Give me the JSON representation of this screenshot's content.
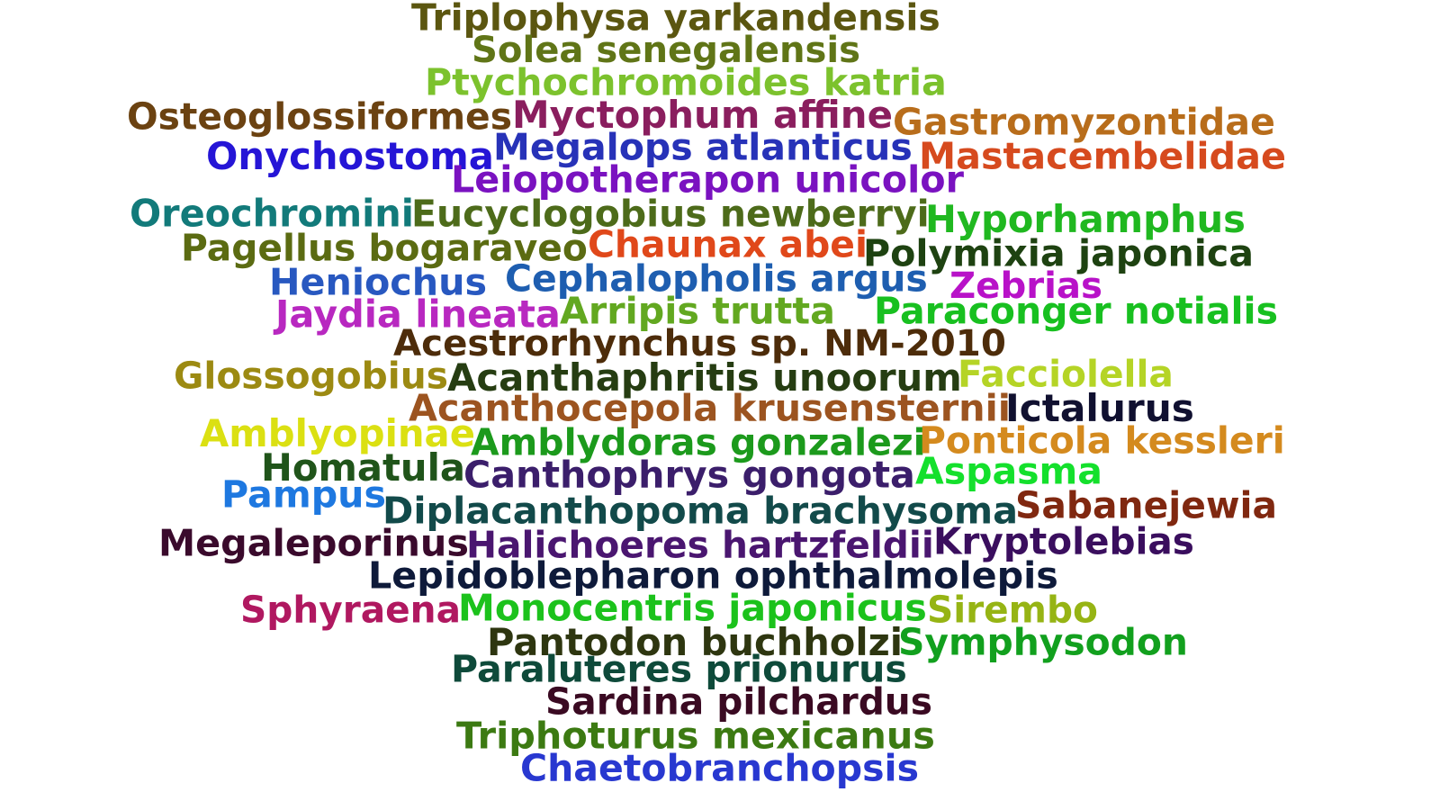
{
  "cloud": {
    "words": [
      {
        "text": "Triplophysa yarkandensis",
        "color": "#5b5610"
      },
      {
        "text": "Solea senegalensis",
        "color": "#607517"
      },
      {
        "text": "Ptychochromoides katria",
        "color": "#7cc22d"
      },
      {
        "text": "Osteoglossiformes",
        "color": "#6b4211"
      },
      {
        "text": "Myctophum affine",
        "color": "#8a1e5e"
      },
      {
        "text": "Gastromyzontidae",
        "color": "#b86d1b"
      },
      {
        "text": "Onychostoma",
        "color": "#2515d6"
      },
      {
        "text": "Megalops atlanticus",
        "color": "#2732b8"
      },
      {
        "text": "Mastacembelidae",
        "color": "#d64a1e"
      },
      {
        "text": "Leiopotherapon unicolor",
        "color": "#7a12c0"
      },
      {
        "text": "Oreochromini",
        "color": "#127a7a"
      },
      {
        "text": "Eucyclogobius newberryi",
        "color": "#4d6b1a"
      },
      {
        "text": "Hyporhamphus",
        "color": "#20b820"
      },
      {
        "text": "Pagellus bogaraveo",
        "color": "#5b6b12"
      },
      {
        "text": "Chaunax abei",
        "color": "#e0481a"
      },
      {
        "text": "Polymixia japonica",
        "color": "#1e4211"
      },
      {
        "text": "Heniochus",
        "color": "#2858c0"
      },
      {
        "text": "Cephalopholis argus",
        "color": "#1e5eb0"
      },
      {
        "text": "Zebrias",
        "color": "#b812c8"
      },
      {
        "text": "Jaydia lineata",
        "color": "#b828c0"
      },
      {
        "text": "Arripis trutta",
        "color": "#62a820"
      },
      {
        "text": "Paraconger notialis",
        "color": "#18c020"
      },
      {
        "text": "Acestrorhynchus sp. NM-2010",
        "color": "#4d2c0a"
      },
      {
        "text": "Glossogobius",
        "color": "#9c8a12"
      },
      {
        "text": "Acanthaphritis unoorum",
        "color": "#263d12"
      },
      {
        "text": "Facciolella",
        "color": "#b5d426"
      },
      {
        "text": "Acanthocepola krusensternii",
        "color": "#9c5420"
      },
      {
        "text": "Ictalurus",
        "color": "#101030"
      },
      {
        "text": "Amblyopinae",
        "color": "#dbe012"
      },
      {
        "text": "Amblydoras gonzalezi",
        "color": "#1c9a1c"
      },
      {
        "text": "Ponticola kessleri",
        "color": "#d48a1e"
      },
      {
        "text": "Homatula",
        "color": "#20541a"
      },
      {
        "text": "Canthophrys gongota",
        "color": "#3b1e6b"
      },
      {
        "text": "Aspasma",
        "color": "#14e02c"
      },
      {
        "text": "Pampus",
        "color": "#1e78e0"
      },
      {
        "text": "Diplacanthopoma brachysoma",
        "color": "#124a4a"
      },
      {
        "text": "Sabanejewia",
        "color": "#802810"
      },
      {
        "text": "Megaleporinus",
        "color": "#3a0a2c"
      },
      {
        "text": "Halichoeres hartzfeldii",
        "color": "#4a1670"
      },
      {
        "text": "Kryptolebias",
        "color": "#3a0e5e"
      },
      {
        "text": "Lepidoblepharon ophthalmolepis",
        "color": "#0e1a3a"
      },
      {
        "text": "Sphyraena",
        "color": "#b01860"
      },
      {
        "text": "Monocentris japonicus",
        "color": "#1cc21c"
      },
      {
        "text": "Sirembo",
        "color": "#96b414"
      },
      {
        "text": "Pantodon buchholzi",
        "color": "#2e3610"
      },
      {
        "text": "Symphysodon",
        "color": "#12a01e"
      },
      {
        "text": "Paraluteres prionurus",
        "color": "#0e4a3a"
      },
      {
        "text": "Sardina pilchardus",
        "color": "#3a0a22"
      },
      {
        "text": "Triphoturus mexicanus",
        "color": "#3c7a12"
      },
      {
        "text": "Chaetobranchopsis",
        "color": "#2838d0"
      }
    ]
  }
}
